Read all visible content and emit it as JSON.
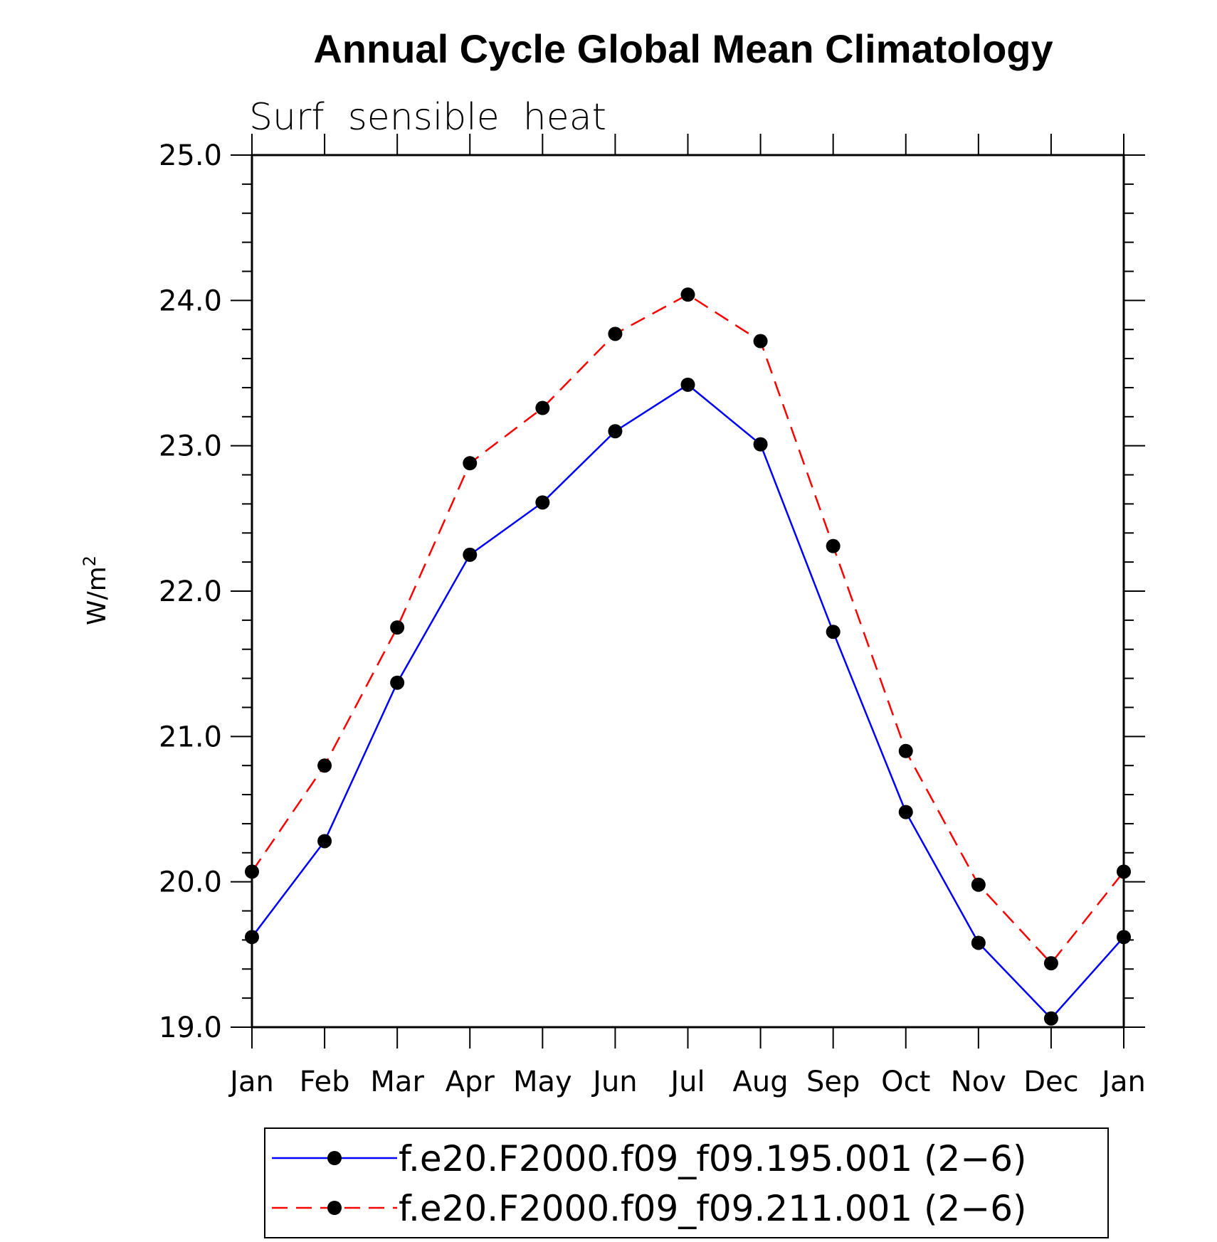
{
  "chart_data": {
    "type": "line",
    "title": "Annual Cycle Global Mean Climatology",
    "subtitle": "Surf  sensible  heat",
    "ylabel": "W/m",
    "ylabel_sup": "2",
    "xlabel": "",
    "ylim": [
      19.0,
      25.0
    ],
    "yticks": [
      "19.0",
      "20.0",
      "21.0",
      "22.0",
      "23.0",
      "24.0",
      "25.0"
    ],
    "categories": [
      "Jan",
      "Feb",
      "Mar",
      "Apr",
      "May",
      "Jun",
      "Jul",
      "Aug",
      "Sep",
      "Oct",
      "Nov",
      "Dec",
      "Jan"
    ],
    "series": [
      {
        "name": "f.e20.F2000.f09_f09.195.001 (2−6)",
        "color": "#0000ff",
        "dash": "solid",
        "values": [
          19.62,
          20.28,
          21.37,
          22.25,
          22.61,
          23.1,
          23.42,
          23.01,
          21.72,
          20.48,
          19.58,
          19.06,
          19.62
        ]
      },
      {
        "name": "f.e20.F2000.f09_f09.211.001 (2−6)",
        "color": "#ff0000",
        "dash": "dashed",
        "values": [
          20.07,
          20.8,
          21.75,
          22.88,
          23.26,
          23.77,
          24.04,
          23.72,
          22.31,
          20.9,
          19.98,
          19.44,
          20.07
        ]
      }
    ],
    "marker": "filled-circle",
    "marker_color": "#000000",
    "legend_position": "bottom-center"
  }
}
